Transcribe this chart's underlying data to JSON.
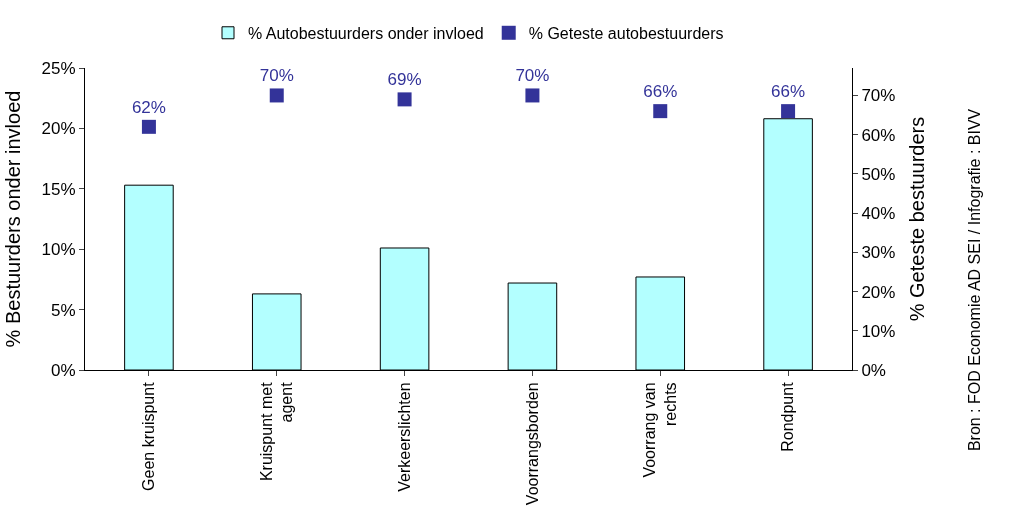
{
  "chart_data": {
    "type": "bar",
    "categories": [
      "Geen kruispunt",
      "Kruispunt met\nagent",
      "Verkeerslichten",
      "Voorrangsborden",
      "Voorrang van\nrechts",
      "Rondpunt"
    ],
    "series": [
      {
        "name": "% Autobestuurders onder invloed",
        "color": "#b3ffff",
        "values": [
          15.3,
          6.3,
          10.1,
          7.2,
          7.7,
          20.8
        ]
      },
      {
        "name": "% Geteste autobestuurders",
        "type": "scatter",
        "axis": "y2",
        "color": "#333399",
        "values": [
          62,
          70,
          69,
          70,
          66,
          66
        ],
        "value_labels": [
          "62%",
          "70%",
          "69%",
          "70%",
          "66%",
          "66%"
        ]
      }
    ],
    "ylabel": "% Bestuurders onder invloed",
    "y2label": "% Geteste bestuurders",
    "ylim": [
      0,
      25
    ],
    "yticks": [
      {
        "value": 0,
        "label": "0%"
      },
      {
        "value": 5,
        "label": "5%"
      },
      {
        "value": 10,
        "label": "10%"
      },
      {
        "value": 15,
        "label": "15%"
      },
      {
        "value": 20,
        "label": "20%"
      },
      {
        "value": 25,
        "label": "25%"
      }
    ],
    "y2lim": [
      0,
      77
    ],
    "y2ticks": [
      {
        "value": 0,
        "label": "0%"
      },
      {
        "value": 10,
        "label": "10%"
      },
      {
        "value": 20,
        "label": "20%"
      },
      {
        "value": 30,
        "label": "30%"
      },
      {
        "value": 40,
        "label": "40%"
      },
      {
        "value": 50,
        "label": "50%"
      },
      {
        "value": 60,
        "label": "60%"
      },
      {
        "value": 70,
        "label": "70%"
      }
    ],
    "annotations": [
      "Bron : FOD Economie AD SEI / Infografie : BIVV"
    ],
    "legend": "top",
    "marker": "square"
  }
}
